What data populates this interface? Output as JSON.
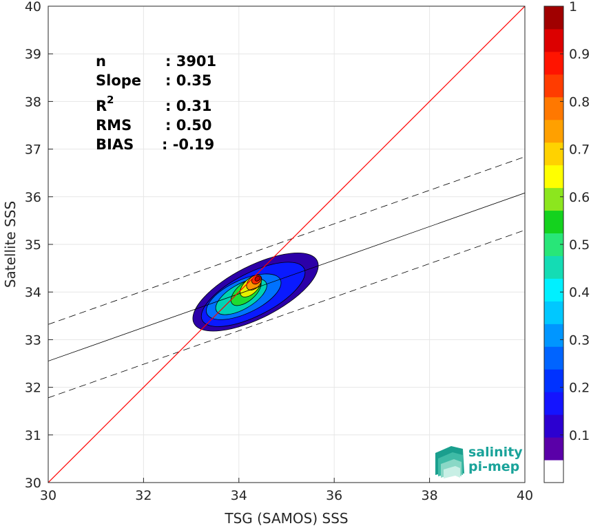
{
  "chart_data": {
    "type": "scatter",
    "xlabel": "TSG (SAMOS) SSS",
    "ylabel": "Satellite SSS",
    "xlim": [
      30,
      40
    ],
    "ylim": [
      30,
      40
    ],
    "xticks": [
      30,
      32,
      34,
      36,
      38,
      40
    ],
    "yticks": [
      30,
      31,
      32,
      33,
      34,
      35,
      36,
      37,
      38,
      39,
      40
    ],
    "grid": true,
    "stats": [
      {
        "label": "n",
        "value": ": 3901"
      },
      {
        "label": "Slope",
        "value": ": 0.35"
      },
      {
        "label": "R",
        "sup": "2",
        "value": ": 0.31"
      },
      {
        "label": "RMS",
        "value": ": 0.50"
      },
      {
        "label": "BIAS",
        "value": ": -0.19"
      }
    ],
    "lines": {
      "one_to_one": {
        "x": [
          30,
          40
        ],
        "y": [
          30,
          40
        ],
        "color": "#ff0000"
      },
      "regression": {
        "x": [
          30,
          40
        ],
        "y": [
          32.55,
          36.08
        ],
        "color": "#000000"
      },
      "upper_bound": {
        "x": [
          30,
          40
        ],
        "y": [
          33.32,
          36.84
        ],
        "dash": true
      },
      "lower_bound": {
        "x": [
          30,
          40
        ],
        "y": [
          31.78,
          35.3
        ],
        "dash": true
      }
    },
    "density_contours": [
      {
        "level": 0.05,
        "color": "#2c00a8",
        "cx": 34.35,
        "cy": 34.0,
        "rx": 1.45,
        "ry": 0.55,
        "rot": 27
      },
      {
        "level": 0.15,
        "color": "#0a1aff",
        "cx": 34.3,
        "cy": 33.95,
        "rx": 1.2,
        "ry": 0.45,
        "rot": 27
      },
      {
        "level": 0.25,
        "color": "#0072ff",
        "cx": 34.1,
        "cy": 33.9,
        "rx": 0.85,
        "ry": 0.35,
        "rot": 25
      },
      {
        "level": 0.4,
        "color": "#00d2b4",
        "cx": 34.05,
        "cy": 33.9,
        "rx": 0.6,
        "ry": 0.26,
        "rot": 30
      },
      {
        "level": 0.55,
        "color": "#1edc30",
        "cx": 34.15,
        "cy": 34.0,
        "rx": 0.38,
        "ry": 0.19,
        "rot": 40
      },
      {
        "level": 0.65,
        "color": "#e6f000",
        "cx": 34.25,
        "cy": 34.12,
        "rx": 0.28,
        "ry": 0.15,
        "rot": 45
      },
      {
        "level": 0.75,
        "color": "#ff9600",
        "cx": 34.32,
        "cy": 34.2,
        "rx": 0.19,
        "ry": 0.12,
        "rot": 45
      },
      {
        "level": 0.85,
        "color": "#ff2a00",
        "cx": 34.37,
        "cy": 34.26,
        "rx": 0.11,
        "ry": 0.08,
        "rot": 40
      },
      {
        "level": 0.95,
        "color": "#c80000",
        "cx": 34.39,
        "cy": 34.28,
        "rx": 0.06,
        "ry": 0.045,
        "rot": 40
      }
    ],
    "colorbar": {
      "range": [
        0,
        1
      ],
      "ticks": [
        0.1,
        0.2,
        0.3,
        0.4,
        0.5,
        0.6,
        0.7,
        0.8,
        0.9,
        1
      ],
      "colors": [
        "#ffffff",
        "#5a00a8",
        "#2c00d0",
        "#1414ff",
        "#0032ff",
        "#0064ff",
        "#0096ff",
        "#00c8ff",
        "#00f0ff",
        "#14dcb4",
        "#28e678",
        "#14d21e",
        "#8ce61e",
        "#ffff00",
        "#ffd200",
        "#ffa000",
        "#ff7800",
        "#ff3c00",
        "#ff1400",
        "#dc0000",
        "#a00000"
      ]
    }
  },
  "logo": {
    "line1": "salinity",
    "line2": "pi-mep",
    "accent": "#1aa39a"
  }
}
